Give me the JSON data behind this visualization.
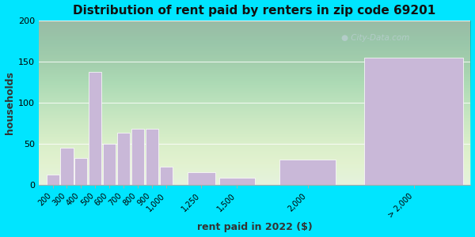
{
  "title": "Distribution of rent paid by renters in zip code 69201",
  "xlabel": "rent paid in 2022 ($)",
  "ylabel": "households",
  "bar_centers": [
    200,
    300,
    400,
    500,
    600,
    700,
    800,
    900,
    1000,
    1250,
    1500,
    2000,
    2750
  ],
  "bar_widths": [
    90,
    90,
    90,
    90,
    90,
    90,
    90,
    90,
    90,
    200,
    250,
    400,
    700
  ],
  "bar_labels": [
    "200",
    "300",
    "400",
    "500",
    "600",
    "700",
    "800",
    "900",
    "1,000",
    "1,250",
    "1,500",
    "2,000",
    "> 2,000"
  ],
  "bar_values": [
    12,
    45,
    32,
    137,
    50,
    63,
    68,
    68,
    22,
    15,
    8,
    30,
    155
  ],
  "bar_color": "#c9b8d8",
  "bg_color_outer": "#00e5ff",
  "bg_color_plot": "#daeeda",
  "ylim": [
    0,
    200
  ],
  "yticks": [
    0,
    50,
    100,
    150,
    200
  ],
  "title_fontsize": 11,
  "axis_label_fontsize": 9,
  "watermark_text": "● City-Data.com"
}
